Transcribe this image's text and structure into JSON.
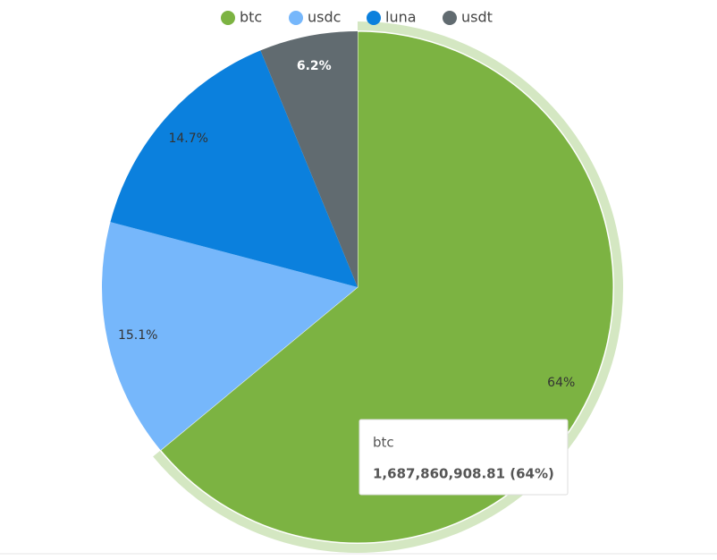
{
  "chart_data": {
    "type": "pie",
    "categories": [
      "btc",
      "usdc",
      "luna",
      "usdt"
    ],
    "values": [
      64,
      15.1,
      14.7,
      6.2
    ],
    "value_labels": [
      "64%",
      "15.1%",
      "14.7%",
      "6.2%"
    ],
    "colors": [
      "#7cb342",
      "#76b7fb",
      "#0b80dd",
      "#616b70"
    ],
    "label_colors": [
      "#333333",
      "#333333",
      "#333333",
      "#ffffff"
    ],
    "legend": "top",
    "tooltip": "1,687,860,908.81 (64%)"
  }
}
